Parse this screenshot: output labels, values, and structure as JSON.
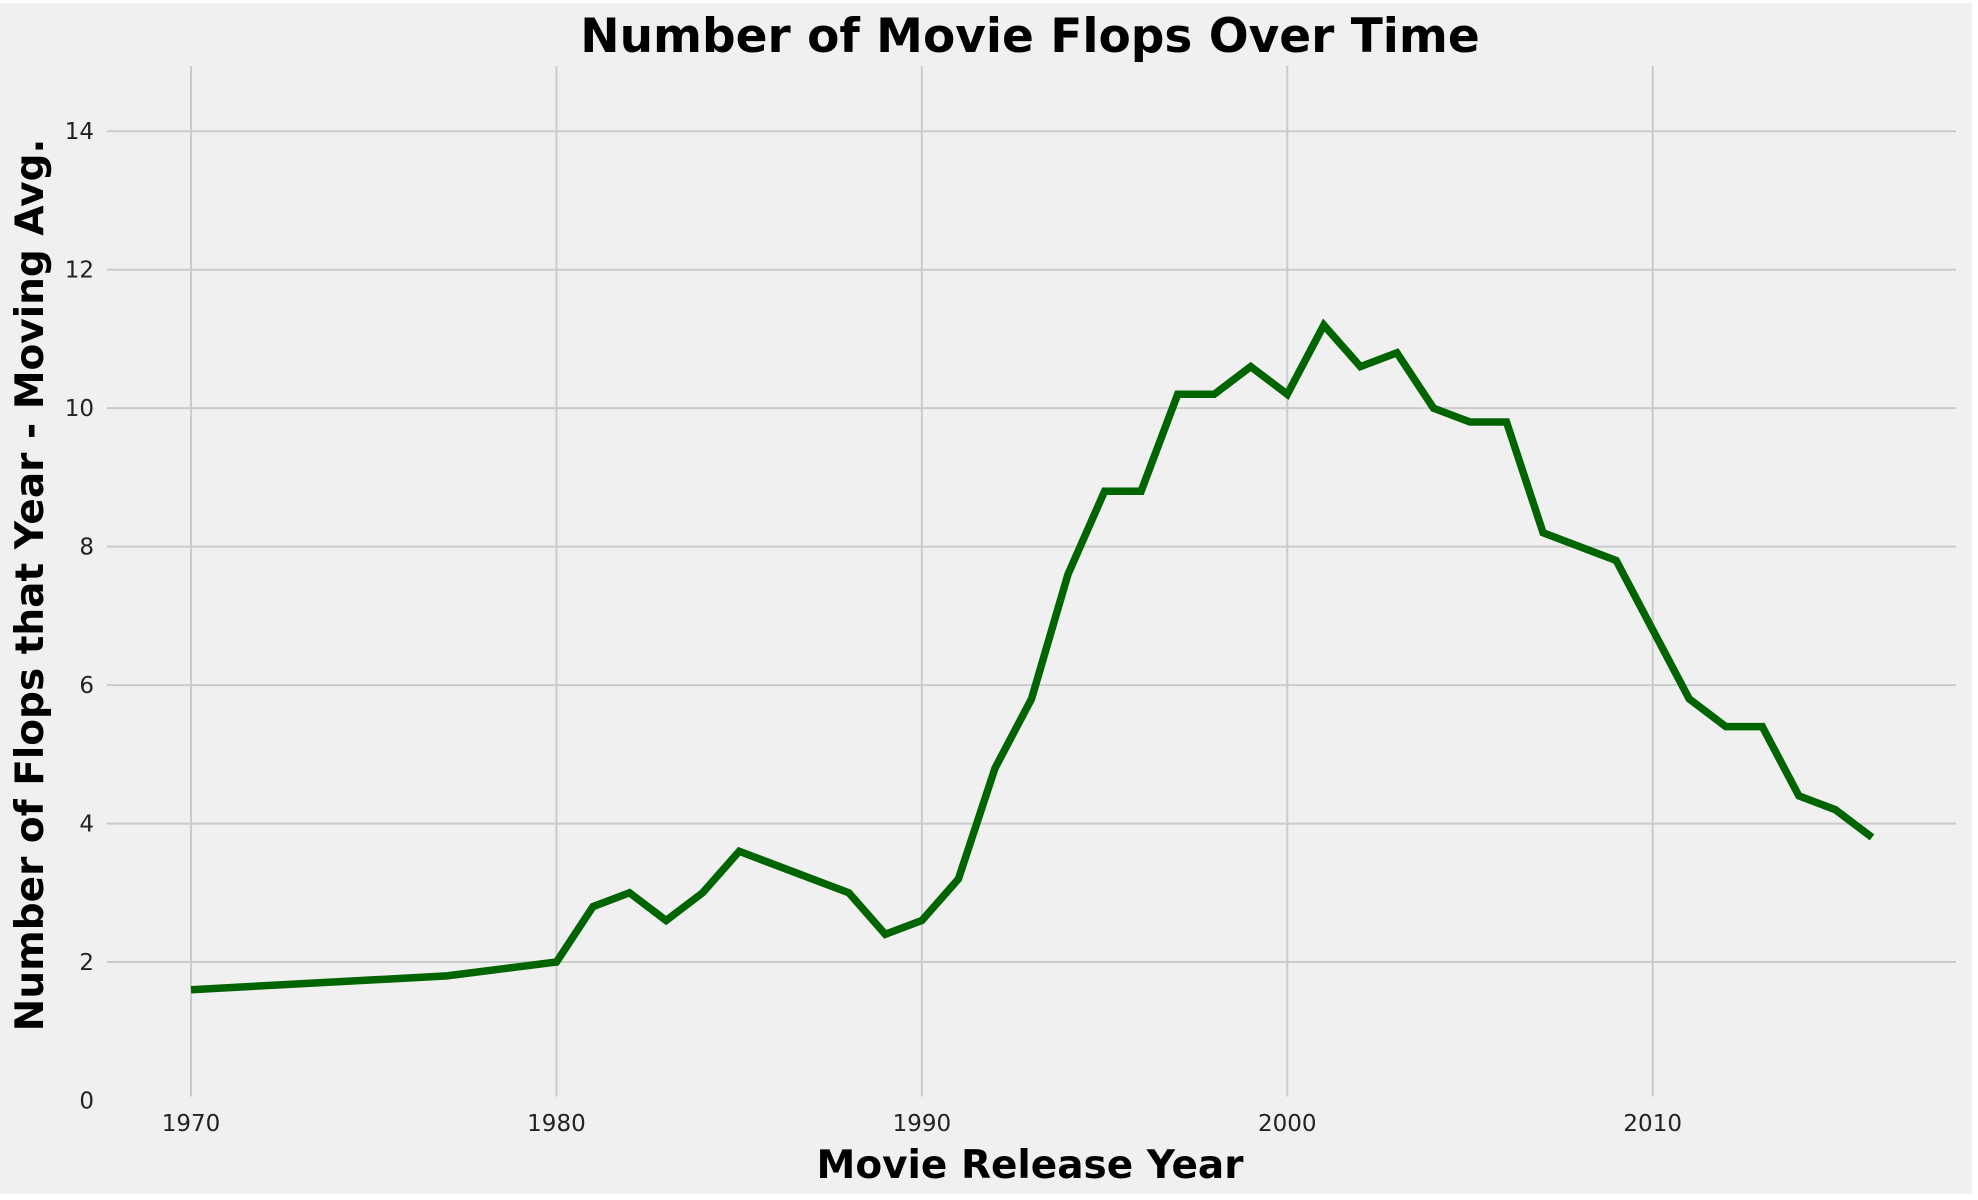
{
  "chart_data": {
    "type": "line",
    "title": "Number of Movie Flops Over Time",
    "xlabel": "Movie Release Year",
    "ylabel": "Number of Flops that Year - Moving Avg.",
    "xlim": [
      1967.7,
      2018.3
    ],
    "ylim": [
      0,
      15
    ],
    "xticks": [
      1970,
      1980,
      1990,
      2000,
      2010
    ],
    "yticks": [
      0,
      2,
      4,
      6,
      8,
      10,
      12,
      14
    ],
    "grid": true,
    "legend": null,
    "series": [
      {
        "name": "Number of Flops - Moving Avg.",
        "color": "#006400",
        "x": [
          1970,
          1977,
          1980,
          1981,
          1982,
          1983,
          1984,
          1985,
          1988,
          1989,
          1990,
          1991,
          1992,
          1993,
          1994,
          1995,
          1996,
          1997,
          1998,
          1999,
          2000,
          2001,
          2002,
          2003,
          2004,
          2005,
          2006,
          2007,
          2008,
          2009,
          2010,
          2011,
          2012,
          2013,
          2014,
          2015,
          2016
        ],
        "values": [
          1.6,
          1.8,
          2.0,
          2.8,
          3.0,
          2.6,
          3.0,
          3.6,
          3.0,
          2.4,
          2.6,
          3.2,
          4.8,
          5.8,
          7.6,
          8.8,
          8.8,
          10.2,
          10.2,
          10.6,
          10.2,
          11.2,
          10.6,
          10.8,
          10.0,
          9.8,
          9.8,
          8.2,
          8.0,
          7.8,
          6.8,
          5.8,
          5.4,
          5.4,
          4.4,
          4.2,
          3.8
        ]
      }
    ]
  },
  "colors": {
    "figure_background": "#f0f0f0",
    "grid": "#cbcbcb",
    "line": "#006400",
    "text": "#000000"
  }
}
